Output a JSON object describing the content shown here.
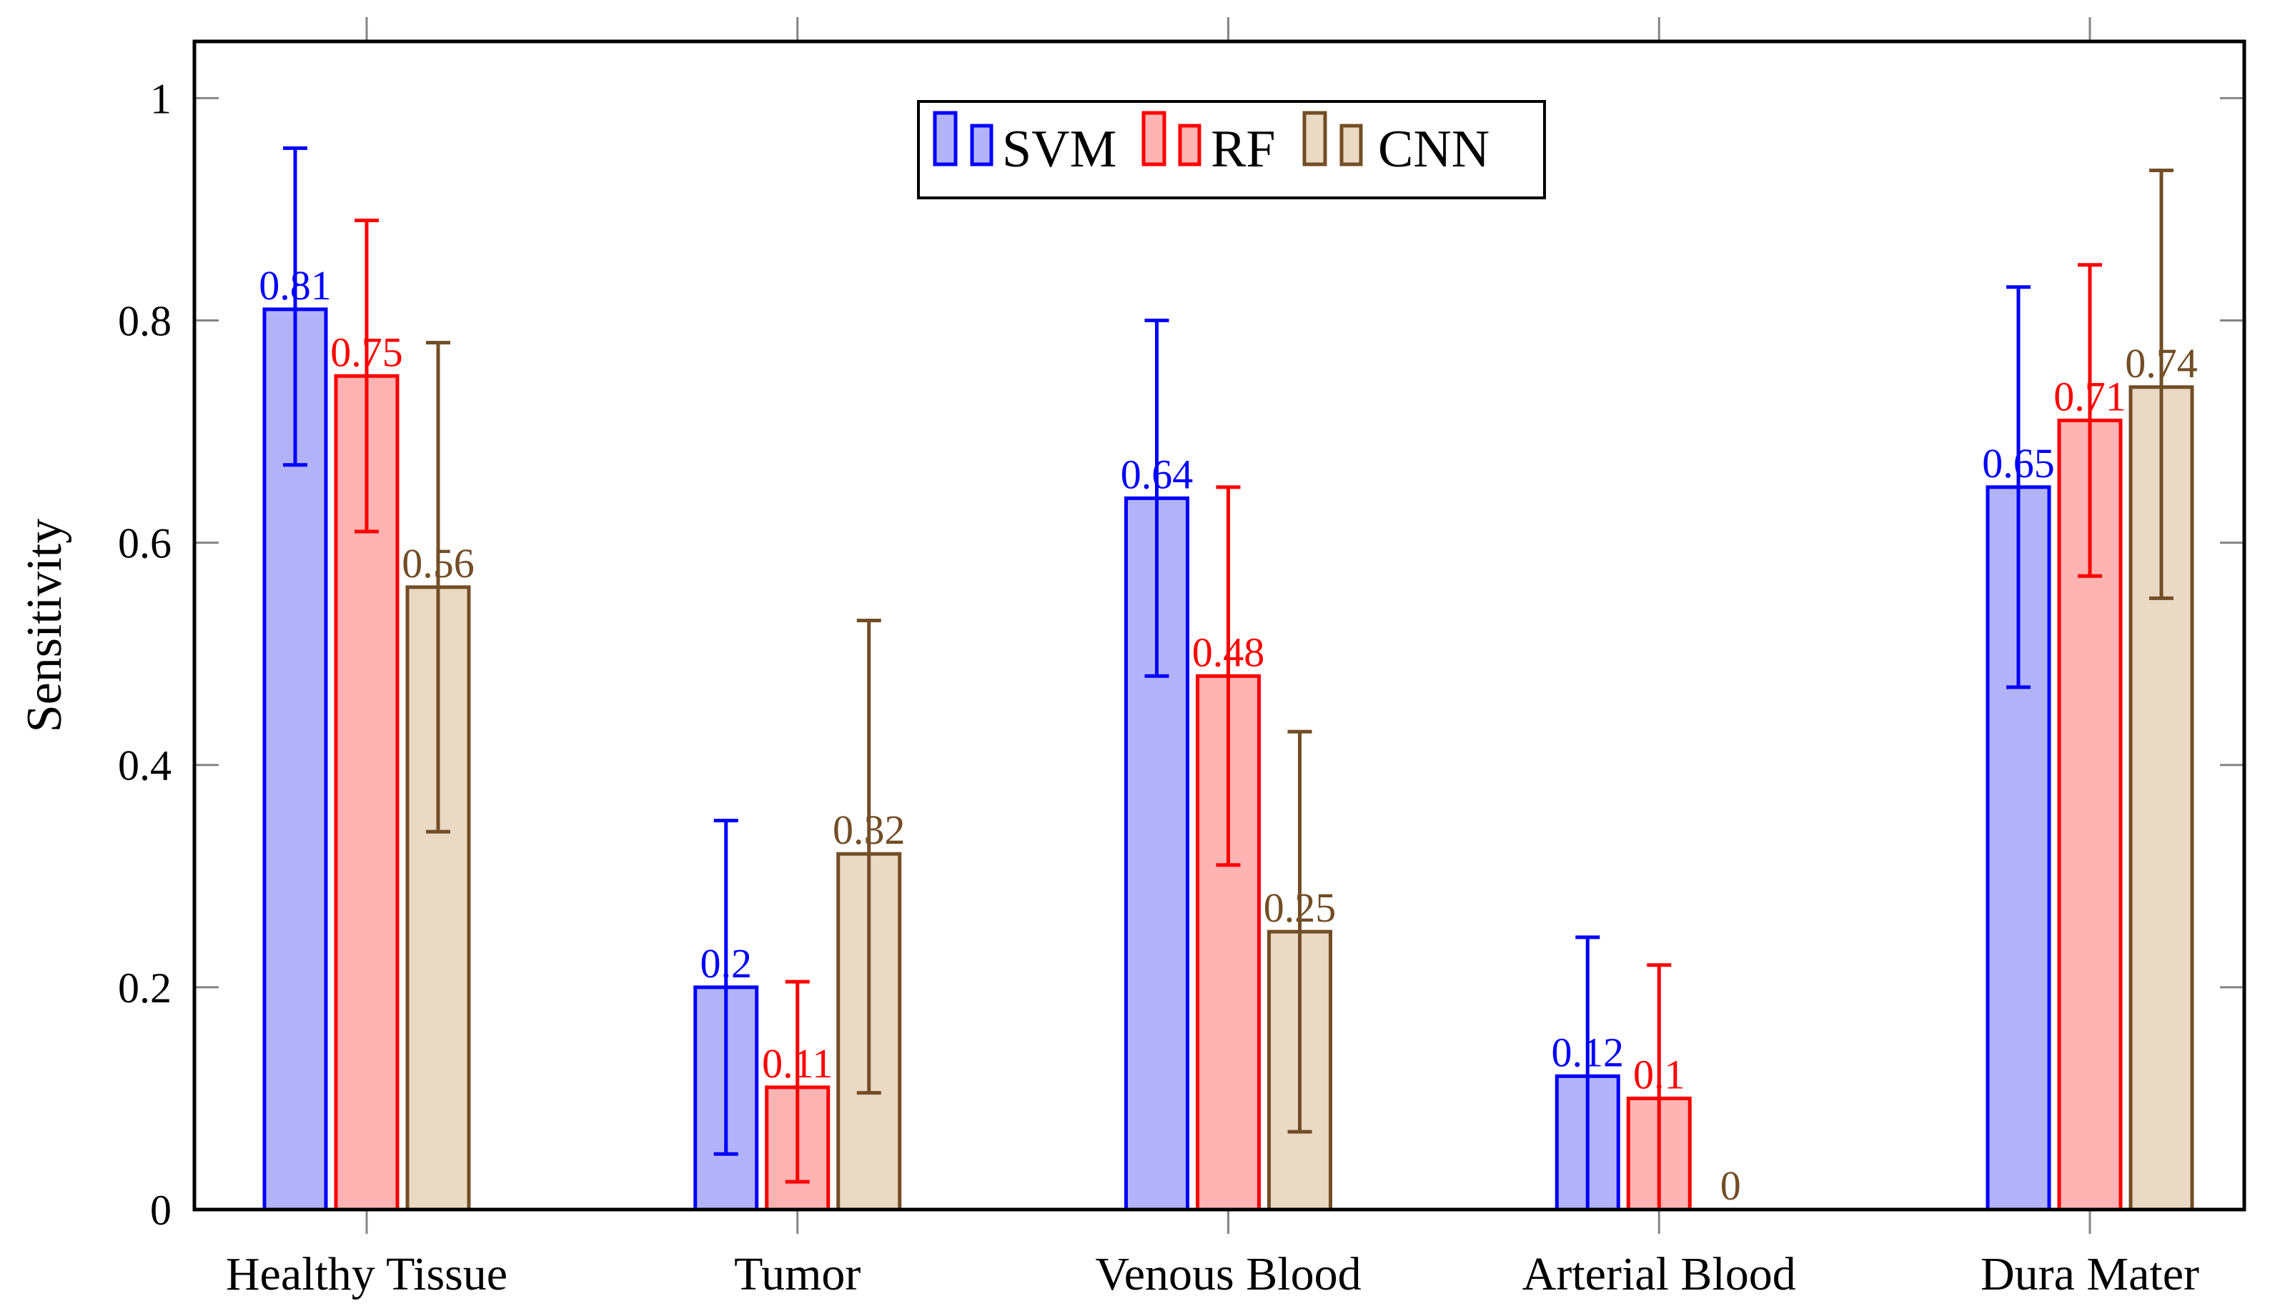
{
  "figure": {
    "background": "#ffffff",
    "axis_border_color": "#000000",
    "tick_color": "#848484"
  },
  "chart_data": {
    "type": "bar",
    "title": "",
    "xlabel": "",
    "ylabel": "Sensitivity",
    "categories": [
      "Healthy Tissue",
      "Tumor",
      "Venous Blood",
      "Arterial Blood",
      "Dura Mater"
    ],
    "ylim": [
      0,
      1.051
    ],
    "yticks": [
      0,
      0.2,
      0.4,
      0.6,
      0.8,
      1
    ],
    "ytick_labels": [
      "0",
      "0.2",
      "0.4",
      "0.6",
      "0.8",
      "1"
    ],
    "grid": false,
    "legend_position": "top-center",
    "error_bars": "symmetric std-dev whiskers with caps",
    "series": [
      {
        "name": "SVM",
        "color": "#0000ff",
        "fill": "#b3b3fc",
        "values": [
          0.81,
          0.2,
          0.64,
          0.12,
          0.65
        ],
        "value_labels": [
          "0.81",
          "0.2",
          "0.64",
          "0.12",
          "0.65"
        ],
        "error_lo": [
          0.67,
          0.05,
          0.48,
          0,
          0.47
        ],
        "error_hi": [
          0.955,
          0.35,
          0.8,
          0.245,
          0.83
        ],
        "lower_cap": [
          true,
          true,
          true,
          false,
          true
        ],
        "has_error": [
          true,
          true,
          true,
          true,
          true
        ]
      },
      {
        "name": "RF",
        "color": "#ff0000",
        "fill": "#ffb3b3",
        "values": [
          0.75,
          0.11,
          0.48,
          0.1,
          0.71
        ],
        "value_labels": [
          "0.75",
          "0.11",
          "0.48",
          "0.1",
          "0.71"
        ],
        "error_lo": [
          0.61,
          0.025,
          0.31,
          0,
          0.57
        ],
        "error_hi": [
          0.89,
          0.205,
          0.65,
          0.22,
          0.85
        ],
        "lower_cap": [
          true,
          true,
          true,
          false,
          true
        ],
        "has_error": [
          true,
          true,
          true,
          true,
          true
        ]
      },
      {
        "name": "CNN",
        "color": "#734d26",
        "fill": "#ead9c4",
        "values": [
          0.56,
          0.32,
          0.25,
          0,
          0.74
        ],
        "value_labels": [
          "0.56",
          "0.32",
          "0.25",
          "0",
          "0.74"
        ],
        "error_lo": [
          0.34,
          0.105,
          0.07,
          null,
          0.55
        ],
        "error_hi": [
          0.78,
          0.53,
          0.43,
          null,
          0.935
        ],
        "lower_cap": [
          true,
          true,
          true,
          false,
          true
        ],
        "has_error": [
          true,
          true,
          true,
          false,
          true
        ]
      }
    ]
  }
}
